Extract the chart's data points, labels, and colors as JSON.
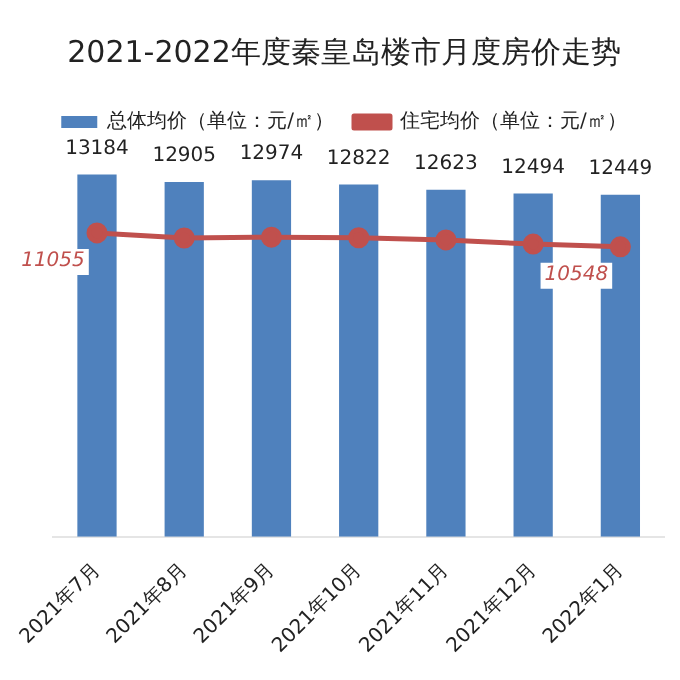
{
  "chart_data": {
    "type": "bar",
    "title": "2021-2022年度秦皇岛楼市月度房价走势",
    "categories": [
      "2021年7月",
      "2021年8月",
      "2021年9月",
      "2021年10月",
      "2021年11月",
      "2021年12月",
      "2022年1月"
    ],
    "series": [
      {
        "name": "总体均价（单位：元/㎡）",
        "color": "#4f81bd",
        "values": [
          13184,
          12905,
          12974,
          12822,
          12623,
          12494,
          12449
        ],
        "value_labels": [
          "13184",
          "12905",
          "12974",
          "12822",
          "12623",
          "12494",
          "12449"
        ]
      },
      {
        "name": "住宅均价（单位：元/㎡）",
        "type": "line",
        "color": "#c0504d",
        "marker": "circle",
        "values": [
          11055,
          10870,
          10900,
          10880,
          10800,
          10650,
          10548
        ],
        "value_labels": [
          "11055",
          null,
          null,
          null,
          null,
          null,
          "10548"
        ]
      }
    ],
    "relative": false,
    "legend": "top",
    "grid": false
  }
}
